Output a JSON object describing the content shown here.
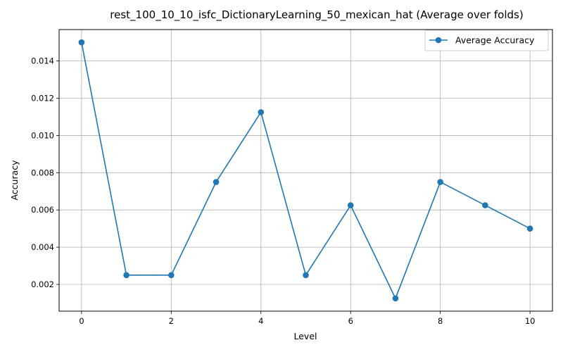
{
  "chart_data": {
    "type": "line",
    "title": "rest_100_10_10_isfc_DictionaryLearning_50_mexican_hat (Average over folds)",
    "xlabel": "Level",
    "ylabel": "Accuracy",
    "x": [
      0,
      1,
      2,
      3,
      4,
      5,
      6,
      7,
      8,
      9,
      10
    ],
    "series": [
      {
        "name": "Average Accuracy",
        "color": "#1f77b4",
        "marker": "circle",
        "values": [
          0.015,
          0.0025,
          0.0025,
          0.0075,
          0.01125,
          0.0025,
          0.00625,
          0.00125,
          0.0075,
          0.00625,
          0.005
        ]
      }
    ],
    "xlim": [
      -0.5,
      10.5
    ],
    "ylim": [
      0.000563,
      0.015688
    ],
    "xticks": [
      0,
      2,
      4,
      6,
      8,
      10
    ],
    "xtick_labels": [
      "0",
      "2",
      "4",
      "6",
      "8",
      "10"
    ],
    "yticks": [
      0.002,
      0.004,
      0.006,
      0.008,
      0.01,
      0.012,
      0.014
    ],
    "ytick_labels": [
      "0.002",
      "0.004",
      "0.006",
      "0.008",
      "0.010",
      "0.012",
      "0.014"
    ],
    "grid": true,
    "legend": "top-right"
  }
}
